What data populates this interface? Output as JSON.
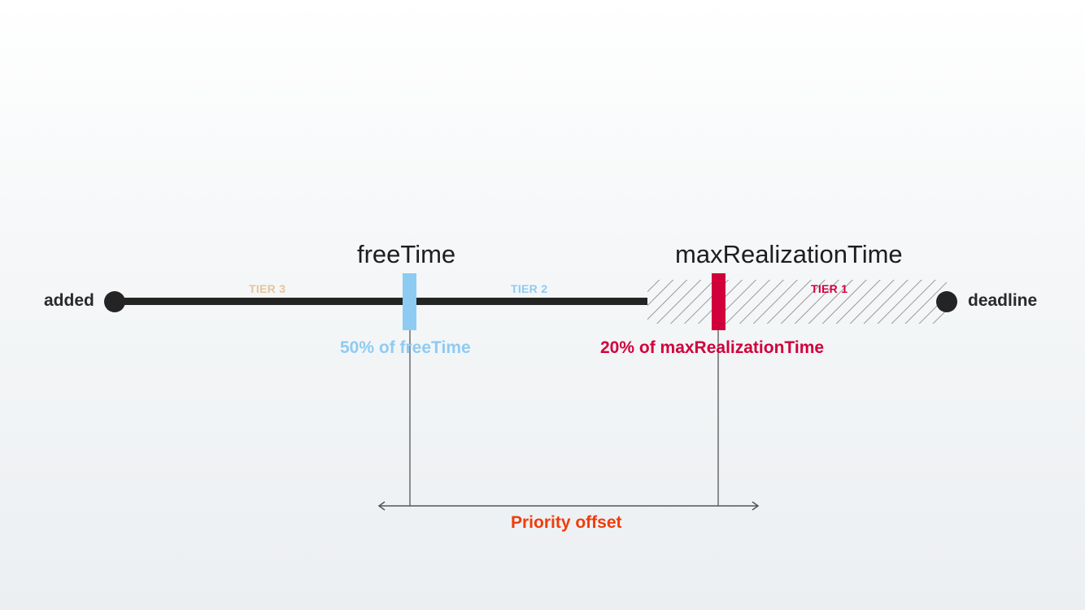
{
  "endpoints": {
    "start": "added",
    "end": "deadline"
  },
  "tiers": [
    {
      "label": "TIER 3",
      "color": "#e8c49a"
    },
    {
      "label": "TIER 2",
      "color": "#8ecbf3"
    },
    {
      "label": "TIER 1",
      "color": "#d1003a"
    }
  ],
  "markers": {
    "free_time": {
      "title": "freeTime",
      "percent_label": "50% of freeTime",
      "color": "#8ecbf3"
    },
    "max_realization_time": {
      "title": "maxRealizationTime",
      "percent_label": "20% of maxRealizationTime",
      "color": "#d1003a"
    }
  },
  "offset": {
    "label": "Priority offset",
    "color": "#f03c0a"
  },
  "colors": {
    "timeline": "#242424",
    "hatch": "#9a9a9a",
    "guide": "#6b6b6b"
  }
}
